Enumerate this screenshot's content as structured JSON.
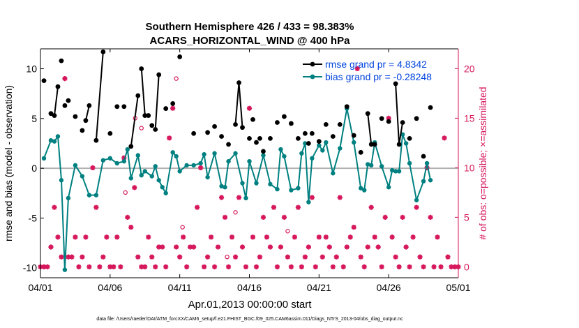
{
  "chart_data": {
    "type": "line",
    "title_line1": "Southern Hemisphere 426 / 433 = 98.383%",
    "title_line2": "ACARS_HORIZONTAL_WIND @ 400 hPa",
    "xlabel": "Apr.01,2013 00:00:00 start",
    "ylabel_left": "rmse and bias (model - observation)",
    "ylabel_right": "# of obs: o=possible; ×=assimilated",
    "footer": "data file: /Users/raeder/DAI/ATM_forcXX/CAM6_setup/f.e21.FHIST_BGC.f09_025.CAM6assim.011/Diags_NTrS_2013-04/obs_diag_output.nc",
    "xlim": [
      0,
      30
    ],
    "ylim_left": [
      -11,
      12
    ],
    "ylim_right": [
      -1.1,
      22
    ],
    "x_ticks": [
      0,
      5,
      10,
      15,
      20,
      25,
      30
    ],
    "x_tick_labels": [
      "04/01",
      "04/06",
      "04/11",
      "04/16",
      "04/21",
      "04/26",
      "05/01"
    ],
    "y_ticks_left": [
      -10,
      -5,
      0,
      5,
      10
    ],
    "y_tick_labels_left": [
      "-10",
      "-5",
      "0",
      "5",
      "10"
    ],
    "y_ticks_right": [
      0,
      5,
      10,
      15,
      20
    ],
    "y_tick_labels_right": [
      "0",
      "5",
      "10",
      "15",
      "20"
    ],
    "legend": [
      {
        "label": "rmse grand pr = 4.8342",
        "color": "#000000"
      },
      {
        "label": "bias grand pr = -0.28248",
        "color": "#008080"
      }
    ],
    "legend_position": "top-right",
    "colors": {
      "rmse": "#000000",
      "bias": "#008080",
      "obs": "#d6175b",
      "zero_line": "#b0b0b0",
      "legend_text": "#0044dd"
    },
    "rmse": [
      [
        0.25,
        8.8
      ],
      [
        0.75,
        5.5
      ],
      [
        1.0,
        5.3
      ],
      [
        1.25,
        8.2
      ],
      [
        1.5,
        10.8
      ],
      [
        1.75,
        6.3
      ],
      [
        2.0,
        6.8
      ],
      [
        2.5,
        5.2
      ],
      [
        3.0,
        3.8
      ],
      [
        3.25,
        4.8
      ],
      [
        3.5,
        6.3
      ],
      [
        4.0,
        2.8
      ],
      [
        4.5,
        11.7
      ],
      [
        5.0,
        3.5
      ],
      [
        5.5,
        6.2
      ],
      [
        6.0,
        6.2
      ],
      [
        6.5,
        2.2
      ],
      [
        7.0,
        7.3
      ],
      [
        7.25,
        10.0
      ],
      [
        7.5,
        5.3
      ],
      [
        7.75,
        5.3
      ],
      [
        8.0,
        4.3
      ],
      [
        8.25,
        3.9
      ],
      [
        8.5,
        9.4
      ],
      [
        9.0,
        6.0
      ],
      [
        9.5,
        6.5
      ],
      [
        10.0,
        11.2
      ],
      [
        11.0,
        3.5
      ],
      [
        12.0,
        3.6
      ],
      [
        12.5,
        4.2
      ],
      [
        13.0,
        3.2
      ],
      [
        13.5,
        2.4
      ],
      [
        14.0,
        4.4
      ],
      [
        14.25,
        8.6
      ],
      [
        14.5,
        4.1
      ],
      [
        15.0,
        3.0
      ],
      [
        15.25,
        4.9
      ],
      [
        15.5,
        2.6
      ],
      [
        15.75,
        3.0
      ],
      [
        16.0,
        1.7
      ],
      [
        16.5,
        3.0
      ],
      [
        17.0,
        4.6
      ],
      [
        17.5,
        5.2
      ],
      [
        18.0,
        4.5
      ],
      [
        18.5,
        3.0
      ],
      [
        19.0,
        3.5
      ],
      [
        19.25,
        2.5
      ],
      [
        19.5,
        3.5
      ],
      [
        20.0,
        2.7
      ],
      [
        20.5,
        4.4
      ],
      [
        21.0,
        3.2
      ],
      [
        21.5,
        4.4
      ],
      [
        22.0,
        6.2
      ],
      [
        22.5,
        3.3
      ],
      [
        23.0,
        1.6
      ],
      [
        23.5,
        5.5
      ],
      [
        23.75,
        2.4
      ],
      [
        24.0,
        2.4
      ],
      [
        24.5,
        5.0
      ],
      [
        25.0,
        4.7
      ],
      [
        25.5,
        8.5
      ],
      [
        25.75,
        2.4
      ],
      [
        26.0,
        4.6
      ],
      [
        26.5,
        3.0
      ],
      [
        27.0,
        5.0
      ],
      [
        27.5,
        1.2
      ],
      [
        28.0,
        6.1
      ]
    ],
    "rmse_segments": [
      [
        0.75,
        1.0,
        1.25
      ],
      [
        3.25,
        3.5
      ],
      [
        4.0,
        4.5
      ],
      [
        6.5,
        7.0
      ],
      [
        7.25,
        7.5
      ],
      [
        8.25,
        8.5
      ],
      [
        14.0,
        14.25,
        14.5
      ],
      [
        23.5,
        23.75,
        24.0
      ],
      [
        25.5,
        25.75,
        26.0
      ]
    ],
    "bias": [
      [
        0.25,
        1.0
      ],
      [
        0.75,
        2.8
      ],
      [
        1.0,
        2.7
      ],
      [
        1.25,
        3.2
      ],
      [
        1.5,
        -1.2
      ],
      [
        1.75,
        -10.2
      ],
      [
        2.0,
        -3.0
      ],
      [
        2.5,
        0.3
      ],
      [
        3.0,
        -0.8
      ],
      [
        3.5,
        -2.7
      ],
      [
        4.0,
        -2.7
      ],
      [
        4.5,
        0.8
      ],
      [
        5.0,
        1.0
      ],
      [
        5.5,
        0.5
      ],
      [
        6.0,
        0.7
      ],
      [
        6.25,
        1.9
      ],
      [
        6.5,
        -1.0
      ],
      [
        7.0,
        1.3
      ],
      [
        7.25,
        -0.7
      ],
      [
        7.5,
        -0.3
      ],
      [
        8.0,
        -0.8
      ],
      [
        8.25,
        0.2
      ],
      [
        8.5,
        -1.2
      ],
      [
        8.75,
        -1.9
      ],
      [
        9.0,
        -2.5
      ],
      [
        9.5,
        1.6
      ],
      [
        9.75,
        1.2
      ],
      [
        10.0,
        -0.3
      ],
      [
        10.5,
        0.3
      ],
      [
        11.0,
        0.3
      ],
      [
        11.5,
        0.5
      ],
      [
        11.75,
        1.4
      ],
      [
        12.0,
        -0.9
      ],
      [
        12.5,
        1.5
      ],
      [
        13.0,
        -1.8
      ],
      [
        13.25,
        -1.9
      ],
      [
        13.5,
        0.7
      ],
      [
        14.0,
        1.5
      ],
      [
        14.5,
        -1.5
      ],
      [
        14.75,
        -3.0
      ],
      [
        15.0,
        0.7
      ],
      [
        15.5,
        -1.5
      ],
      [
        16.0,
        1.3
      ],
      [
        16.5,
        -1.6
      ],
      [
        17.0,
        -2.1
      ],
      [
        17.25,
        1.9
      ],
      [
        17.5,
        1.2
      ],
      [
        18.0,
        -2.2
      ],
      [
        18.5,
        -2.0
      ],
      [
        18.75,
        1.5
      ],
      [
        19.0,
        2.5
      ],
      [
        19.25,
        -3.4
      ],
      [
        19.5,
        1.0
      ],
      [
        20.0,
        2.3
      ],
      [
        20.25,
        1.8
      ],
      [
        20.5,
        2.6
      ],
      [
        21.0,
        -0.5
      ],
      [
        21.5,
        2.0
      ],
      [
        22.0,
        6.0
      ],
      [
        22.5,
        2.6
      ],
      [
        23.0,
        -2.0
      ],
      [
        23.25,
        -2.2
      ],
      [
        23.5,
        0.4
      ],
      [
        23.75,
        0.3
      ],
      [
        24.0,
        2.6
      ],
      [
        24.5,
        0.2
      ],
      [
        25.0,
        -1.9
      ],
      [
        25.25,
        -0.2
      ],
      [
        25.5,
        -0.3
      ],
      [
        25.75,
        -0.3
      ],
      [
        26.0,
        3.4
      ],
      [
        26.25,
        2.5
      ],
      [
        26.5,
        0.5
      ],
      [
        27.0,
        -3.2
      ],
      [
        27.5,
        -1.3
      ],
      [
        27.75,
        0.5
      ],
      [
        28.0,
        -1.2
      ]
    ],
    "obs_assimilated": [
      [
        0,
        0
      ],
      [
        0.25,
        0
      ],
      [
        0.5,
        0
      ],
      [
        0.75,
        2
      ],
      [
        1.0,
        6
      ],
      [
        1.25,
        3
      ],
      [
        1.5,
        1
      ],
      [
        1.75,
        19
      ],
      [
        2.0,
        1
      ],
      [
        2.25,
        1
      ],
      [
        2.5,
        3
      ],
      [
        2.75,
        0
      ],
      [
        3.0,
        1
      ],
      [
        3.25,
        3
      ],
      [
        3.5,
        0
      ],
      [
        3.75,
        10
      ],
      [
        4.0,
        6
      ],
      [
        4.25,
        0
      ],
      [
        4.5,
        1
      ],
      [
        4.75,
        3
      ],
      [
        5.0,
        0
      ],
      [
        5.25,
        0
      ],
      [
        5.5,
        3
      ],
      [
        5.75,
        0
      ],
      [
        6.0,
        11
      ],
      [
        6.25,
        5
      ],
      [
        6.5,
        4
      ],
      [
        6.75,
        8
      ],
      [
        7.0,
        1
      ],
      [
        7.25,
        0
      ],
      [
        7.5,
        0
      ],
      [
        7.75,
        3
      ],
      [
        8.0,
        1
      ],
      [
        8.25,
        0
      ],
      [
        8.5,
        2
      ],
      [
        8.75,
        2
      ],
      [
        9.0,
        0
      ],
      [
        9.25,
        13
      ],
      [
        9.5,
        16
      ],
      [
        9.75,
        2
      ],
      [
        10.0,
        1
      ],
      [
        10.25,
        3
      ],
      [
        10.5,
        0
      ],
      [
        10.75,
        2
      ],
      [
        11.0,
        2
      ],
      [
        11.25,
        6
      ],
      [
        11.5,
        10
      ],
      [
        11.75,
        0
      ],
      [
        12.0,
        1
      ],
      [
        12.25,
        3
      ],
      [
        12.5,
        0
      ],
      [
        12.75,
        2
      ],
      [
        13.0,
        7
      ],
      [
        13.25,
        5
      ],
      [
        13.5,
        0
      ],
      [
        13.75,
        3
      ],
      [
        14.0,
        1
      ],
      [
        14.25,
        7
      ],
      [
        14.5,
        2
      ],
      [
        14.75,
        0
      ],
      [
        15.0,
        16
      ],
      [
        15.25,
        3
      ],
      [
        15.5,
        0
      ],
      [
        15.75,
        1
      ],
      [
        16.0,
        5
      ],
      [
        16.25,
        3
      ],
      [
        16.5,
        2
      ],
      [
        16.75,
        6
      ],
      [
        17.0,
        0
      ],
      [
        17.25,
        2
      ],
      [
        17.5,
        5
      ],
      [
        17.75,
        1
      ],
      [
        18.0,
        0
      ],
      [
        18.25,
        3
      ],
      [
        18.5,
        6
      ],
      [
        18.75,
        0
      ],
      [
        19.0,
        1
      ],
      [
        19.25,
        2
      ],
      [
        19.5,
        7
      ],
      [
        19.75,
        0
      ],
      [
        20.0,
        3
      ],
      [
        20.25,
        1
      ],
      [
        20.5,
        3
      ],
      [
        20.75,
        2
      ],
      [
        21.0,
        0
      ],
      [
        21.25,
        1
      ],
      [
        21.5,
        7
      ],
      [
        21.75,
        0
      ],
      [
        22.0,
        2
      ],
      [
        22.25,
        3
      ],
      [
        22.5,
        4
      ],
      [
        22.75,
        20
      ],
      [
        23.0,
        1
      ],
      [
        23.25,
        0
      ],
      [
        23.5,
        2
      ],
      [
        23.75,
        6
      ],
      [
        24.0,
        3
      ],
      [
        24.25,
        2
      ],
      [
        24.5,
        0
      ],
      [
        24.75,
        5
      ],
      [
        25.0,
        15
      ],
      [
        25.25,
        3
      ],
      [
        25.5,
        1
      ],
      [
        25.75,
        0
      ],
      [
        26.0,
        5
      ],
      [
        26.25,
        2
      ],
      [
        26.5,
        0
      ],
      [
        26.75,
        3
      ],
      [
        27.0,
        6
      ],
      [
        27.25,
        1
      ],
      [
        27.5,
        0
      ],
      [
        27.75,
        10
      ],
      [
        28.0,
        5
      ],
      [
        28.25,
        0
      ],
      [
        28.5,
        3
      ],
      [
        28.75,
        0
      ],
      [
        29.0,
        13
      ],
      [
        29.25,
        1
      ],
      [
        29.5,
        0
      ],
      [
        29.75,
        0
      ],
      [
        30.0,
        0
      ]
    ],
    "obs_possible": [
      [
        0,
        0
      ],
      [
        0.25,
        0
      ],
      [
        0.5,
        0
      ],
      [
        0.75,
        2
      ],
      [
        1.0,
        6
      ],
      [
        1.25,
        3
      ],
      [
        1.5,
        1
      ],
      [
        1.75,
        19
      ],
      [
        2.0,
        1
      ],
      [
        2.25,
        1
      ],
      [
        2.5,
        3
      ],
      [
        2.75,
        0
      ],
      [
        3.0,
        1
      ],
      [
        3.25,
        3
      ],
      [
        3.5,
        0
      ],
      [
        3.75,
        10
      ],
      [
        4.0,
        6
      ],
      [
        4.25,
        0
      ],
      [
        4.5,
        1
      ],
      [
        4.75,
        3
      ],
      [
        5.0,
        0
      ],
      [
        5.25,
        0
      ],
      [
        5.5,
        3
      ],
      [
        5.75,
        0
      ],
      [
        6.0,
        11
      ],
      [
        6.25,
        5
      ],
      [
        6.5,
        4
      ],
      [
        6.75,
        8
      ],
      [
        7.0,
        1
      ],
      [
        7.25,
        14
      ],
      [
        7.5,
        0
      ],
      [
        7.75,
        3
      ],
      [
        8.0,
        1
      ],
      [
        8.25,
        0
      ],
      [
        8.5,
        2
      ],
      [
        8.75,
        2
      ],
      [
        9.0,
        0
      ],
      [
        9.25,
        13
      ],
      [
        9.5,
        16
      ],
      [
        9.75,
        19
      ],
      [
        10.0,
        1
      ],
      [
        10.25,
        3
      ],
      [
        10.5,
        0
      ],
      [
        10.75,
        2
      ],
      [
        11.0,
        2
      ],
      [
        11.25,
        6
      ],
      [
        11.5,
        10
      ],
      [
        11.75,
        0
      ],
      [
        12.0,
        1
      ],
      [
        12.25,
        3
      ],
      [
        12.5,
        0
      ],
      [
        12.75,
        2
      ],
      [
        13.0,
        7
      ],
      [
        13.25,
        5
      ],
      [
        13.5,
        0
      ],
      [
        13.75,
        3
      ],
      [
        14.0,
        1
      ],
      [
        14.25,
        7
      ],
      [
        14.5,
        2
      ],
      [
        14.75,
        0
      ],
      [
        15.0,
        16
      ],
      [
        15.25,
        3
      ],
      [
        15.5,
        0
      ],
      [
        15.75,
        1
      ],
      [
        16.0,
        5
      ],
      [
        16.25,
        3
      ],
      [
        16.5,
        2
      ],
      [
        16.75,
        6
      ],
      [
        17.0,
        0
      ],
      [
        17.25,
        2
      ],
      [
        17.5,
        5
      ],
      [
        17.75,
        1
      ],
      [
        18.0,
        0
      ],
      [
        18.25,
        3
      ],
      [
        18.5,
        6
      ],
      [
        18.75,
        0
      ],
      [
        19.0,
        1
      ],
      [
        19.25,
        2
      ],
      [
        19.5,
        7
      ],
      [
        19.75,
        0
      ],
      [
        20.0,
        3
      ],
      [
        20.25,
        1
      ],
      [
        20.5,
        3
      ],
      [
        20.75,
        2
      ],
      [
        21.0,
        0
      ],
      [
        21.25,
        1
      ],
      [
        21.5,
        7
      ],
      [
        21.75,
        0
      ],
      [
        22.0,
        2
      ],
      [
        22.25,
        3
      ],
      [
        22.5,
        4
      ],
      [
        22.75,
        20
      ],
      [
        23.0,
        1
      ],
      [
        23.25,
        0
      ],
      [
        23.5,
        2
      ],
      [
        23.75,
        6
      ],
      [
        24.0,
        3
      ],
      [
        24.25,
        2
      ],
      [
        24.5,
        0
      ],
      [
        24.75,
        5
      ],
      [
        25.0,
        15
      ],
      [
        25.25,
        3
      ],
      [
        25.5,
        1
      ],
      [
        25.75,
        0
      ],
      [
        26.0,
        5
      ],
      [
        26.25,
        2
      ],
      [
        26.5,
        0
      ],
      [
        26.75,
        3
      ],
      [
        27.0,
        6
      ],
      [
        27.25,
        1
      ],
      [
        27.5,
        0
      ],
      [
        27.75,
        10
      ],
      [
        28.0,
        5
      ],
      [
        28.25,
        0
      ],
      [
        28.5,
        3
      ],
      [
        28.75,
        0
      ],
      [
        29.0,
        13
      ],
      [
        29.25,
        1
      ],
      [
        29.5,
        0
      ],
      [
        29.75,
        0
      ],
      [
        30.0,
        0
      ]
    ],
    "obs_possible_extra": [
      [
        6.8,
        15
      ],
      [
        10.2,
        4
      ],
      [
        13.4,
        1
      ],
      [
        17.75,
        3.6
      ],
      [
        6.1,
        7.5
      ],
      [
        14.0,
        5.5
      ]
    ]
  }
}
